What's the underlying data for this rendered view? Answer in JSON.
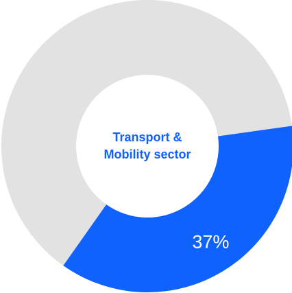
{
  "chart_data": {
    "type": "pie",
    "title": "Transport & Mobility sector",
    "values": [
      37,
      63
    ],
    "value_labels": [
      "37%",
      null
    ],
    "colors": [
      "#0f62fe",
      "#e2e2e2"
    ]
  }
}
